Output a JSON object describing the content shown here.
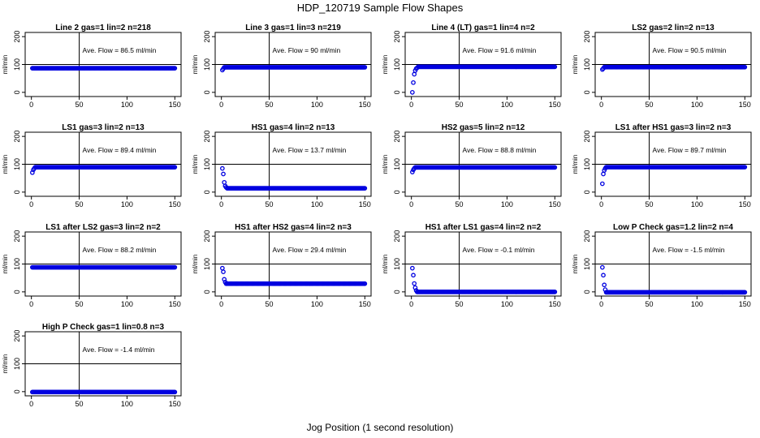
{
  "figure": {
    "title": "HDP_120719  Sample Flow Shapes",
    "xlabel": "Jog Position (1 second resolution)",
    "point_color": "#0000e0"
  },
  "chart_data": [
    {
      "type": "scatter",
      "title": "Line 2 gas=1 lin=2 n=218",
      "ylabel": "ml/min",
      "xlim": [
        0,
        150
      ],
      "ylim": [
        -15,
        215
      ],
      "xticks": [
        0,
        50,
        100,
        150
      ],
      "yticks": [
        0,
        100,
        200
      ],
      "ref_x": 50,
      "ref_y": 100,
      "annotation": "Ave. Flow =  86.5  ml/min",
      "initial": [],
      "steady": {
        "start": 1,
        "end": 150,
        "value": 86.5
      }
    },
    {
      "type": "scatter",
      "title": "Line 3 gas=1 lin=3 n=219",
      "ylabel": "ml/min",
      "xlim": [
        0,
        150
      ],
      "ylim": [
        -15,
        215
      ],
      "xticks": [
        0,
        50,
        100,
        150
      ],
      "yticks": [
        0,
        100,
        200
      ],
      "ref_x": 50,
      "ref_y": 100,
      "annotation": "Ave. Flow =  90  ml/min",
      "initial": [
        [
          1,
          80
        ],
        [
          2,
          85
        ]
      ],
      "steady": {
        "start": 3,
        "end": 150,
        "value": 90
      }
    },
    {
      "type": "scatter",
      "title": "Line 4 (LT) gas=1 lin=4 n=2",
      "ylabel": "ml/min",
      "xlim": [
        0,
        150
      ],
      "ylim": [
        -15,
        215
      ],
      "xticks": [
        0,
        50,
        100,
        150
      ],
      "yticks": [
        0,
        100,
        200
      ],
      "ref_x": 50,
      "ref_y": 100,
      "annotation": "Ave. Flow =  91.6  ml/min",
      "initial": [
        [
          1,
          0
        ],
        [
          2,
          35
        ],
        [
          3,
          65
        ],
        [
          4,
          78
        ],
        [
          5,
          85
        ],
        [
          6,
          88
        ]
      ],
      "steady": {
        "start": 7,
        "end": 150,
        "value": 91.6
      }
    },
    {
      "type": "scatter",
      "title": "LS2 gas=2 lin=2 n=13",
      "ylabel": "ml/min",
      "xlim": [
        0,
        150
      ],
      "ylim": [
        -15,
        215
      ],
      "xticks": [
        0,
        50,
        100,
        150
      ],
      "yticks": [
        0,
        100,
        200
      ],
      "ref_x": 50,
      "ref_y": 100,
      "annotation": "Ave. Flow =  90.5  ml/min",
      "initial": [
        [
          1,
          82
        ],
        [
          2,
          86
        ]
      ],
      "steady": {
        "start": 3,
        "end": 150,
        "value": 90.5
      }
    },
    {
      "type": "scatter",
      "title": "LS1 gas=3 lin=2 n=13",
      "ylabel": "ml/min",
      "xlim": [
        0,
        150
      ],
      "ylim": [
        -15,
        215
      ],
      "xticks": [
        0,
        50,
        100,
        150
      ],
      "yticks": [
        0,
        100,
        200
      ],
      "ref_x": 50,
      "ref_y": 100,
      "annotation": "Ave. Flow =  89.4  ml/min",
      "initial": [
        [
          1,
          70
        ],
        [
          2,
          80
        ],
        [
          3,
          85
        ]
      ],
      "steady": {
        "start": 4,
        "end": 150,
        "value": 89.4
      }
    },
    {
      "type": "scatter",
      "title": "HS1 gas=4 lin=2 n=13",
      "ylabel": "ml/min",
      "xlim": [
        0,
        150
      ],
      "ylim": [
        -15,
        215
      ],
      "xticks": [
        0,
        50,
        100,
        150
      ],
      "yticks": [
        0,
        100,
        200
      ],
      "ref_x": 50,
      "ref_y": 100,
      "annotation": "Ave. Flow =  13.7  ml/min",
      "initial": [
        [
          1,
          85
        ],
        [
          2,
          65
        ],
        [
          3,
          35
        ],
        [
          4,
          22
        ],
        [
          5,
          17
        ]
      ],
      "steady": {
        "start": 6,
        "end": 150,
        "value": 13.7
      }
    },
    {
      "type": "scatter",
      "title": "HS2 gas=5 lin=2 n=12",
      "ylabel": "ml/min",
      "xlim": [
        0,
        150
      ],
      "ylim": [
        -15,
        215
      ],
      "xticks": [
        0,
        50,
        100,
        150
      ],
      "yticks": [
        0,
        100,
        200
      ],
      "ref_x": 50,
      "ref_y": 100,
      "annotation": "Ave. Flow =  88.8  ml/min",
      "initial": [
        [
          1,
          72
        ],
        [
          2,
          80
        ],
        [
          3,
          85
        ]
      ],
      "steady": {
        "start": 4,
        "end": 150,
        "value": 88.8
      }
    },
    {
      "type": "scatter",
      "title": "LS1 after HS1 gas=3 lin=2 n=3",
      "ylabel": "ml/min",
      "xlim": [
        0,
        150
      ],
      "ylim": [
        -15,
        215
      ],
      "xticks": [
        0,
        50,
        100,
        150
      ],
      "yticks": [
        0,
        100,
        200
      ],
      "ref_x": 50,
      "ref_y": 100,
      "annotation": "Ave. Flow =  89.7  ml/min",
      "initial": [
        [
          1,
          30
        ],
        [
          2,
          65
        ],
        [
          3,
          78
        ],
        [
          4,
          85
        ]
      ],
      "steady": {
        "start": 5,
        "end": 150,
        "value": 89.7
      }
    },
    {
      "type": "scatter",
      "title": "LS1 after LS2 gas=3 lin=2 n=2",
      "ylabel": "ml/min",
      "xlim": [
        0,
        150
      ],
      "ylim": [
        -15,
        215
      ],
      "xticks": [
        0,
        50,
        100,
        150
      ],
      "yticks": [
        0,
        100,
        200
      ],
      "ref_x": 50,
      "ref_y": 100,
      "annotation": "Ave. Flow =  88.2  ml/min",
      "initial": [],
      "steady": {
        "start": 1,
        "end": 150,
        "value": 88.2
      }
    },
    {
      "type": "scatter",
      "title": "HS1 after HS2 gas=4 lin=2 n=3",
      "ylabel": "ml/min",
      "xlim": [
        0,
        150
      ],
      "ylim": [
        -15,
        215
      ],
      "xticks": [
        0,
        50,
        100,
        150
      ],
      "yticks": [
        0,
        100,
        200
      ],
      "ref_x": 50,
      "ref_y": 100,
      "annotation": "Ave. Flow =  29.4  ml/min",
      "initial": [
        [
          1,
          85
        ],
        [
          2,
          72
        ],
        [
          3,
          45
        ],
        [
          4,
          35
        ]
      ],
      "steady": {
        "start": 5,
        "end": 150,
        "value": 29.4
      }
    },
    {
      "type": "scatter",
      "title": "HS1 after LS1 gas=4 lin=2 n=2",
      "ylabel": "ml/min",
      "xlim": [
        0,
        150
      ],
      "ylim": [
        -15,
        215
      ],
      "xticks": [
        0,
        50,
        100,
        150
      ],
      "yticks": [
        0,
        100,
        200
      ],
      "ref_x": 50,
      "ref_y": 100,
      "annotation": "Ave. Flow =  -0.1  ml/min",
      "initial": [
        [
          1,
          85
        ],
        [
          2,
          60
        ],
        [
          3,
          30
        ],
        [
          4,
          15
        ],
        [
          5,
          5
        ]
      ],
      "steady": {
        "start": 6,
        "end": 150,
        "value": -0.1
      }
    },
    {
      "type": "scatter",
      "title": "Low P Check gas=1.2 lin=2 n=4",
      "ylabel": "ml/min",
      "xlim": [
        0,
        150
      ],
      "ylim": [
        -15,
        215
      ],
      "xticks": [
        0,
        50,
        100,
        150
      ],
      "yticks": [
        0,
        100,
        200
      ],
      "ref_x": 50,
      "ref_y": 100,
      "annotation": "Ave. Flow =  -1.5  ml/min",
      "initial": [
        [
          1,
          88
        ],
        [
          2,
          60
        ],
        [
          3,
          25
        ],
        [
          4,
          8
        ]
      ],
      "steady": {
        "start": 5,
        "end": 150,
        "value": -1.5
      }
    },
    {
      "type": "scatter",
      "title": "High P Check gas=1 lin=0.8 n=3",
      "ylabel": "ml/min",
      "xlim": [
        0,
        150
      ],
      "ylim": [
        -15,
        215
      ],
      "xticks": [
        0,
        50,
        100,
        150
      ],
      "yticks": [
        0,
        100,
        200
      ],
      "ref_x": 50,
      "ref_y": 100,
      "annotation": "Ave. Flow =  -1.4  ml/min",
      "initial": [],
      "steady": {
        "start": 1,
        "end": 150,
        "value": -1.4
      }
    }
  ]
}
